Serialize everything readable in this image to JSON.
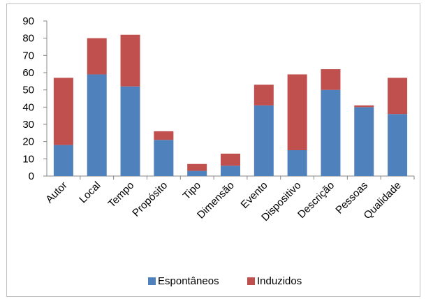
{
  "chart_data": {
    "type": "bar",
    "stacked": true,
    "categories": [
      "Autor",
      "Local",
      "Tempo",
      "Propósito",
      "Tipo",
      "Dimensão",
      "Evento",
      "Dispositivo",
      "Descrição",
      "Pessoas",
      "Qualidade"
    ],
    "series": [
      {
        "name": "Espontâneos",
        "color": "#4f81bd",
        "values": [
          18,
          59,
          52,
          21,
          3,
          6,
          41,
          15,
          50,
          40,
          36
        ]
      },
      {
        "name": "Induzidos",
        "color": "#c0504d",
        "values": [
          39,
          21,
          30,
          5,
          4,
          7,
          12,
          44,
          12,
          1,
          21
        ]
      }
    ],
    "ylim": [
      0,
      90
    ],
    "yticks": [
      0,
      10,
      20,
      30,
      40,
      50,
      60,
      70,
      80,
      90
    ],
    "grid": false,
    "legend": "bottom",
    "title": "",
    "xlabel": "",
    "ylabel": ""
  }
}
